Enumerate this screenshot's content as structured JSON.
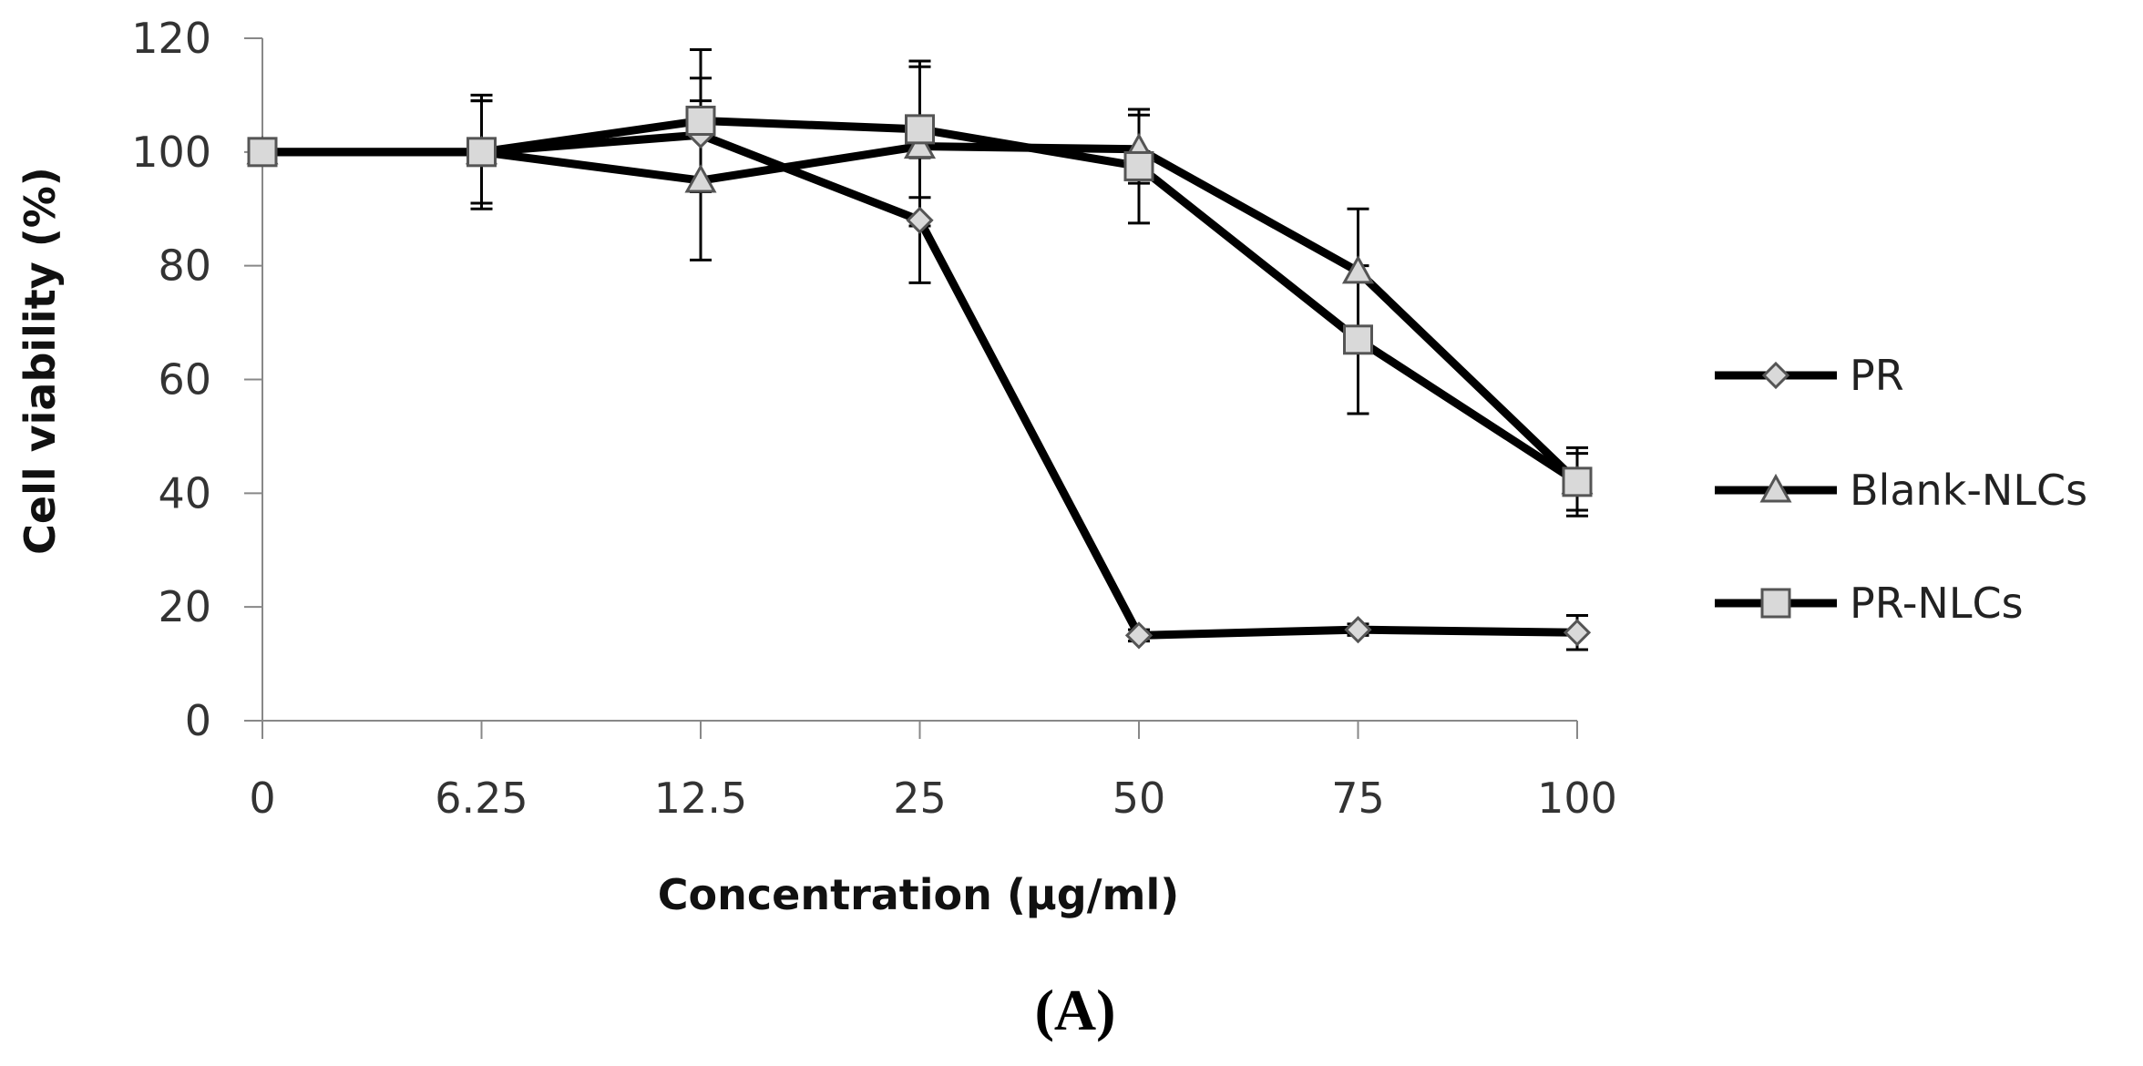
{
  "chart_data": {
    "type": "line",
    "title": "",
    "xlabel": "Concentration (µg/ml)",
    "ylabel": "Cell viability (%)",
    "categories": [
      "0",
      "6.25",
      "12.5",
      "25",
      "50",
      "75",
      "100"
    ],
    "ylim": [
      0,
      120
    ],
    "yticks": [
      "0",
      "20",
      "40",
      "60",
      "80",
      "100",
      "120"
    ],
    "grid": false,
    "legend_position": "right",
    "panel_label": "(A)",
    "series": [
      {
        "name": "PR",
        "marker": "diamond",
        "values": [
          100,
          100,
          103,
          88,
          15,
          16,
          15.5
        ],
        "errors": [
          0,
          9,
          10,
          11,
          1,
          1,
          3
        ]
      },
      {
        "name": "Blank-NLCs",
        "marker": "triangle",
        "values": [
          100,
          100,
          95,
          101,
          100.5,
          79,
          42
        ],
        "errors": [
          0,
          10,
          14,
          14,
          6,
          11,
          5
        ]
      },
      {
        "name": "PR-NLCs",
        "marker": "square",
        "values": [
          100,
          100,
          105.5,
          104,
          97.5,
          67,
          42
        ],
        "errors": [
          0,
          9,
          12.5,
          12,
          10,
          13,
          6
        ]
      }
    ],
    "colors": {
      "line": "#000000",
      "marker_fill": "#d9d9d9",
      "marker_stroke": "#555555",
      "axis": "#888888"
    }
  }
}
